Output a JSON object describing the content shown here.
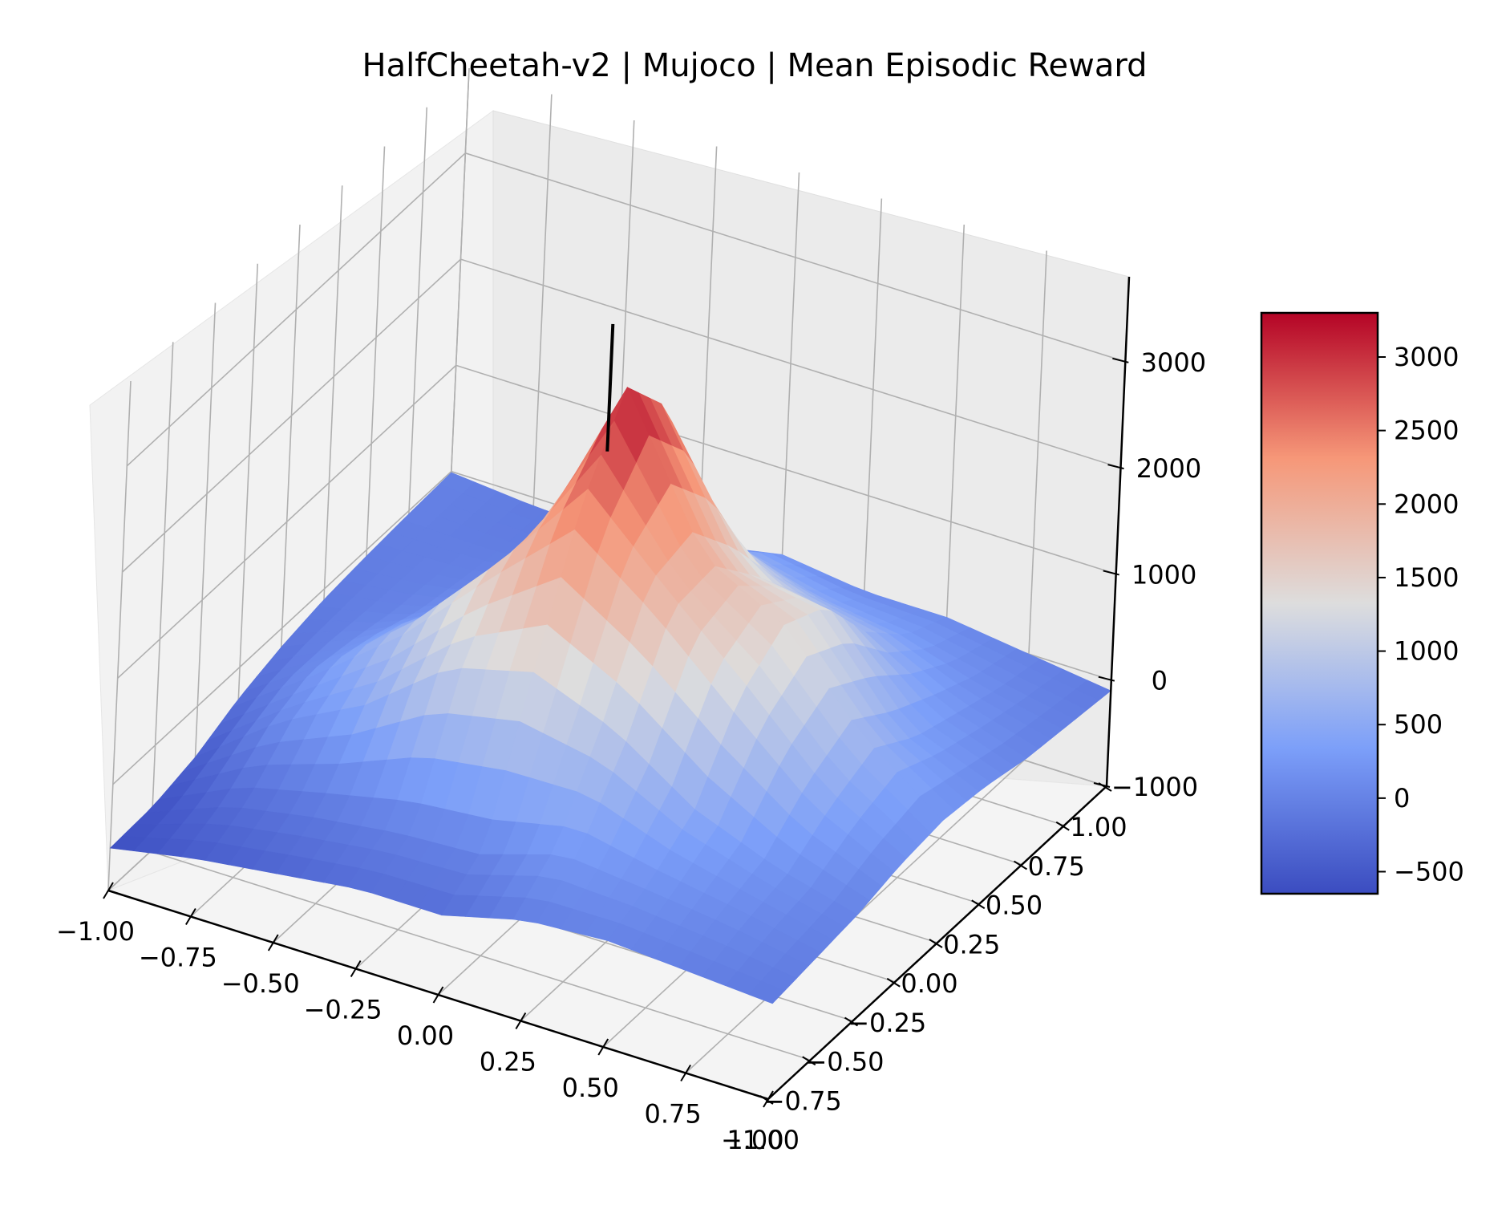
{
  "chart_data": {
    "type": "surface3d",
    "title": "HalfCheetah-v2 | Mujoco | Mean Episodic Reward",
    "xlabel": "",
    "ylabel": "",
    "zlabel": "",
    "xlim": [
      -1.0,
      1.0
    ],
    "ylim": [
      -1.0,
      1.0
    ],
    "zlim": [
      -1000,
      3800
    ],
    "x_ticks": [
      "−1.00",
      "−0.75",
      "−0.50",
      "−0.25",
      "0.00",
      "0.25",
      "0.50",
      "0.75",
      "1.00"
    ],
    "y_ticks": [
      "−1.00",
      "−0.75",
      "−0.50",
      "−0.25",
      "0.00",
      "0.25",
      "0.50",
      "0.75",
      "1.00"
    ],
    "z_ticks": [
      "−1000",
      "0",
      "1000",
      "2000",
      "3000"
    ],
    "colormap": "coolwarm",
    "colorbar": {
      "min": -650,
      "max": 3300,
      "ticks": [
        "−500",
        "0",
        "500",
        "1000",
        "1500",
        "2000",
        "2500",
        "3000"
      ],
      "tick_values": [
        -500,
        0,
        500,
        1000,
        1500,
        2000,
        2500,
        3000
      ]
    },
    "grid": true,
    "surface": {
      "grid_x": [
        -1.0,
        -0.75,
        -0.5,
        -0.25,
        0.0,
        0.25,
        0.5,
        0.75,
        1.0
      ],
      "grid_y": [
        -1.0,
        -0.75,
        -0.5,
        -0.25,
        0.0,
        0.25,
        0.5,
        0.75,
        1.0
      ],
      "z": [
        [
          -600,
          -580,
          -480,
          -300,
          -180,
          -100,
          -60,
          -30,
          -10
        ],
        [
          -450,
          -250,
          100,
          250,
          150,
          30,
          -20,
          -60,
          -80
        ],
        [
          -350,
          -100,
          500,
          900,
          700,
          350,
          100,
          -50,
          -100
        ],
        [
          -250,
          0,
          1100,
          1700,
          1600,
          1300,
          500,
          200,
          50
        ],
        [
          -250,
          50,
          1300,
          2500,
          3250,
          2700,
          1300,
          600,
          200
        ],
        [
          -50,
          300,
          1000,
          1900,
          1900,
          1400,
          900,
          400,
          100
        ],
        [
          0,
          200,
          500,
          1200,
          1500,
          1300,
          700,
          300,
          100
        ],
        [
          -50,
          100,
          200,
          500,
          700,
          400,
          250,
          100,
          0
        ],
        [
          -100,
          -50,
          0,
          100,
          150,
          100,
          0,
          -50,
          -100
        ]
      ]
    },
    "marker": {
      "type": "vertical-line",
      "x": -0.1,
      "y": 0.1,
      "z_range": [
        2400,
        3600
      ],
      "color": "#000000"
    }
  }
}
